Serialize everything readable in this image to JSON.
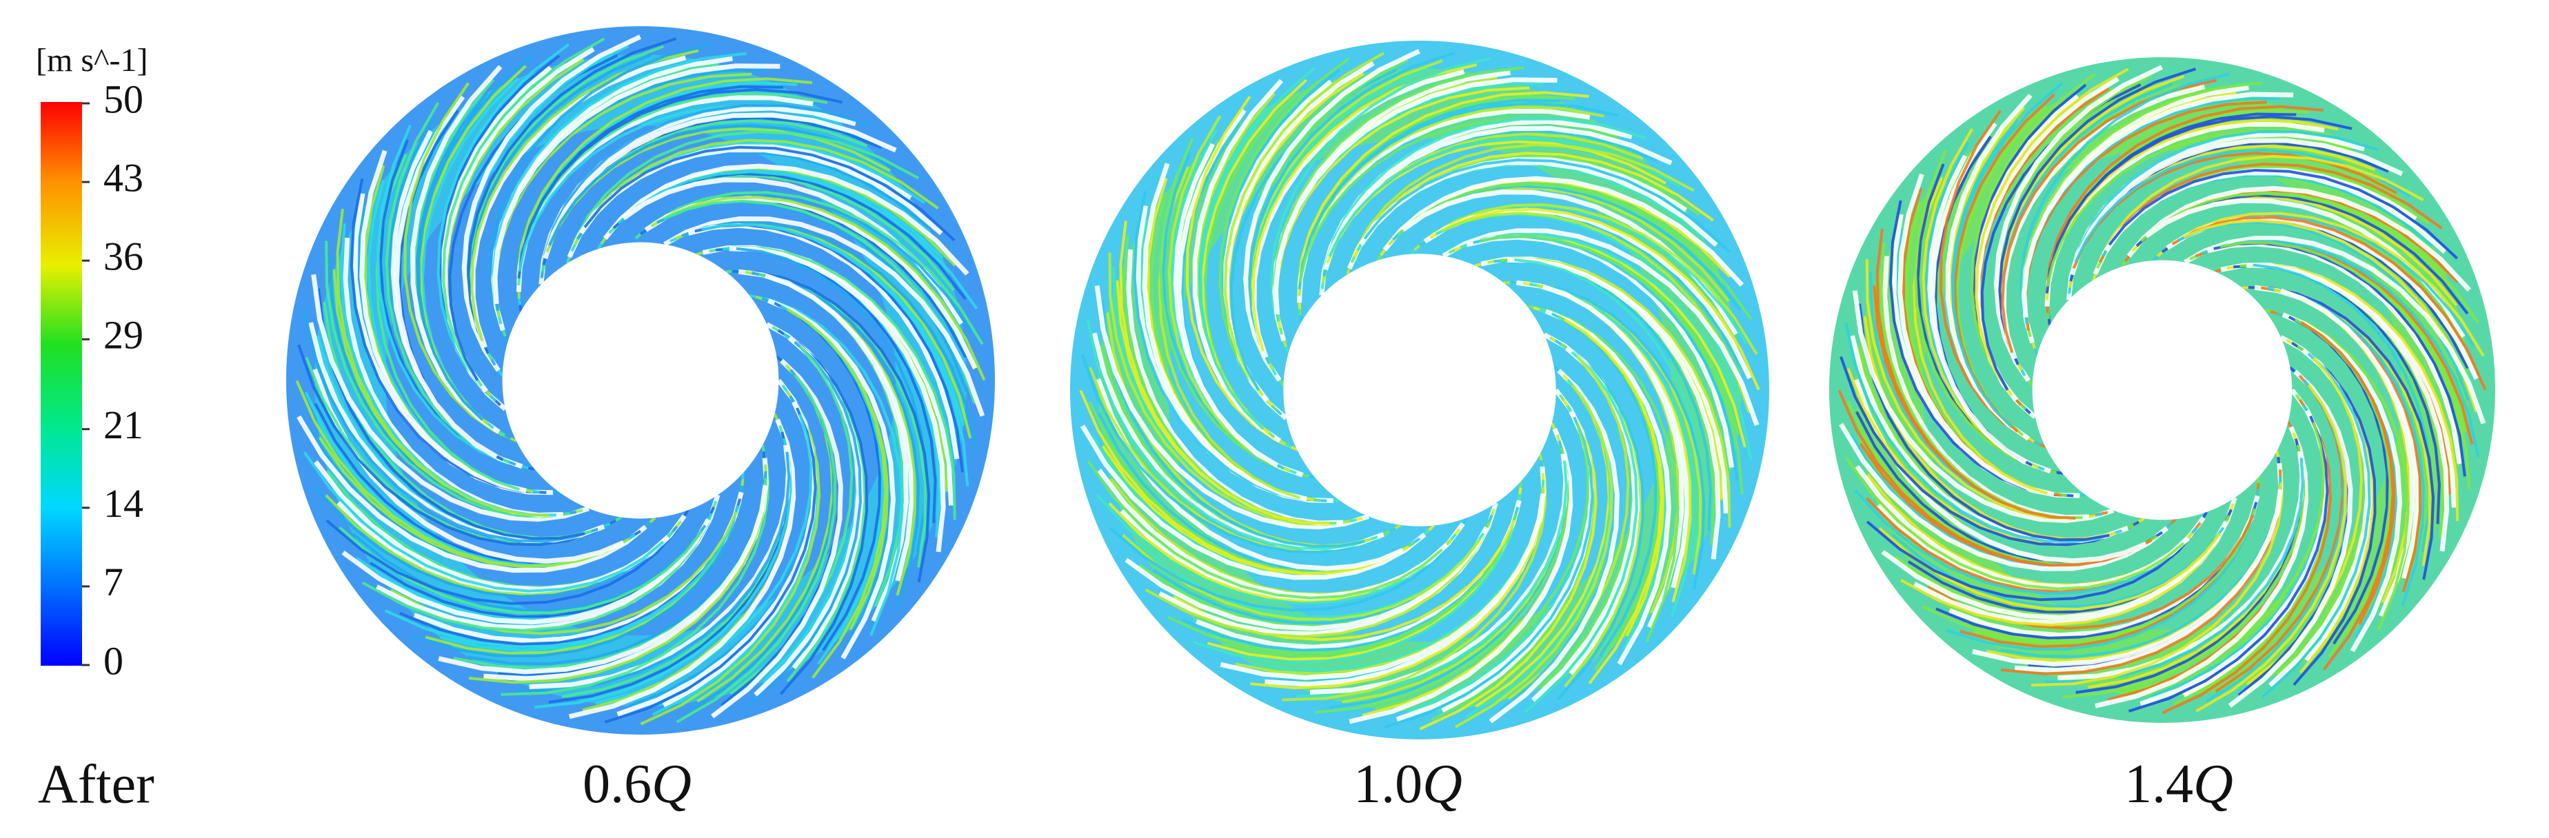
{
  "colorbar": {
    "unit": "[m s^-1]",
    "ticks": [
      50,
      43,
      36,
      29,
      21,
      14,
      7,
      0
    ]
  },
  "row_label": "After",
  "panels": [
    {
      "number": "0.6",
      "symbol": "Q"
    },
    {
      "number": "1.0",
      "symbol": "Q"
    },
    {
      "number": "1.4",
      "symbol": "Q"
    }
  ]
}
